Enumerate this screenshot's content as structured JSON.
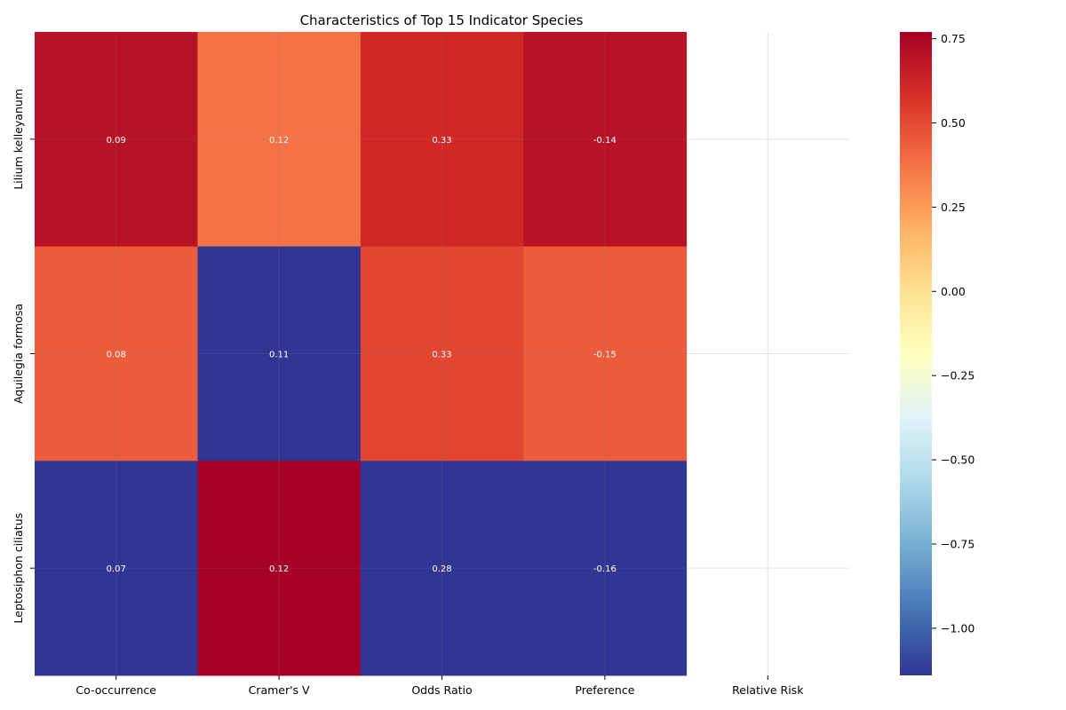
{
  "chart_data": {
    "type": "heatmap",
    "title": "Characteristics of Top 15 Indicator Species",
    "x_categories": [
      "Co-occurrence",
      "Cramer's V",
      "Odds Ratio",
      "Preference",
      "Relative Risk"
    ],
    "y_categories": [
      "Lilium kelleyanum",
      "Aquilegia formosa",
      "Leptosiphon ciliatus"
    ],
    "color_values": [
      [
        0.7,
        0.37,
        0.61,
        0.7,
        null
      ],
      [
        0.44,
        -1.14,
        0.51,
        0.44,
        null
      ],
      [
        -1.14,
        0.77,
        -1.14,
        -1.14,
        null
      ]
    ],
    "annotations": [
      [
        "0.09",
        "0.12",
        "0.33",
        "-0.14",
        ""
      ],
      [
        "0.08",
        "0.11",
        "0.33",
        "-0.15",
        ""
      ],
      [
        "0.07",
        "0.12",
        "0.28",
        "-0.16",
        ""
      ]
    ],
    "colormap": "RdYlBu_r",
    "colorbar": {
      "range": [
        -1.14,
        0.77
      ],
      "ticks": [
        "−1.00",
        "−0.75",
        "−0.50",
        "−0.25",
        "0.00",
        "0.25",
        "0.50",
        "0.75"
      ]
    },
    "grid": true
  }
}
